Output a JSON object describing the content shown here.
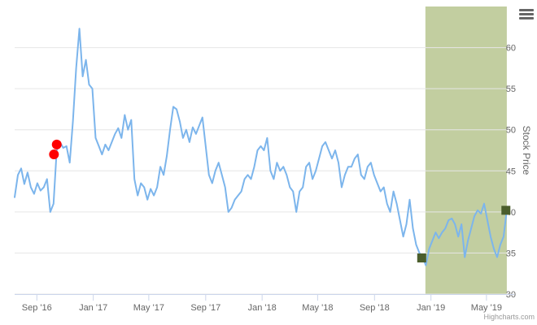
{
  "chart_data": {
    "type": "line",
    "title": "",
    "xlabel": "",
    "ylabel": "Stock Price",
    "x_axis_type": "date",
    "xlim": [
      "2016-07-15",
      "2019-06-30"
    ],
    "ylim": [
      30,
      65
    ],
    "y_ticks": [
      30,
      35,
      40,
      45,
      50,
      55,
      60
    ],
    "x_ticks": [
      {
        "date": "2016-09-01",
        "label": "Sep '16"
      },
      {
        "date": "2017-01-01",
        "label": "Jan '17"
      },
      {
        "date": "2017-05-01",
        "label": "May '17"
      },
      {
        "date": "2017-09-01",
        "label": "Sep '17"
      },
      {
        "date": "2018-01-01",
        "label": "Jan '18"
      },
      {
        "date": "2018-05-01",
        "label": "May '18"
      },
      {
        "date": "2018-09-01",
        "label": "Sep '18"
      },
      {
        "date": "2019-01-01",
        "label": "Jan '19"
      },
      {
        "date": "2019-05-01",
        "label": "May '19"
      }
    ],
    "grid": true,
    "y_axis_position": "right",
    "line_color": "#7cb5ec",
    "highlight_band": {
      "from": "2018-12-20",
      "to": "2019-06-14",
      "color": "#c2cea0"
    },
    "series": [
      {
        "points": [
          [
            "2016-07-15",
            41.8
          ],
          [
            "2016-07-22",
            44.5
          ],
          [
            "2016-07-29",
            45.3
          ],
          [
            "2016-08-05",
            43.4
          ],
          [
            "2016-08-12",
            44.8
          ],
          [
            "2016-08-19",
            43.0
          ],
          [
            "2016-08-26",
            42.2
          ],
          [
            "2016-09-02",
            43.5
          ],
          [
            "2016-09-09",
            42.6
          ],
          [
            "2016-09-16",
            43.0
          ],
          [
            "2016-09-23",
            44.0
          ],
          [
            "2016-09-30",
            40.0
          ],
          [
            "2016-10-07",
            41.0
          ],
          [
            "2016-10-14",
            47.5
          ],
          [
            "2016-10-21",
            48.5
          ],
          [
            "2016-10-28",
            47.8
          ],
          [
            "2016-11-04",
            48.0
          ],
          [
            "2016-11-11",
            46.0
          ],
          [
            "2016-11-18",
            51.0
          ],
          [
            "2016-11-25",
            57.5
          ],
          [
            "2016-12-02",
            62.3
          ],
          [
            "2016-12-09",
            56.5
          ],
          [
            "2016-12-16",
            58.5
          ],
          [
            "2016-12-23",
            55.5
          ],
          [
            "2016-12-30",
            55.0
          ],
          [
            "2017-01-06",
            49.0
          ],
          [
            "2017-01-13",
            48.0
          ],
          [
            "2017-01-20",
            47.0
          ],
          [
            "2017-01-27",
            48.2
          ],
          [
            "2017-02-03",
            47.5
          ],
          [
            "2017-02-10",
            48.5
          ],
          [
            "2017-02-17",
            49.5
          ],
          [
            "2017-02-24",
            50.2
          ],
          [
            "2017-03-03",
            49.0
          ],
          [
            "2017-03-10",
            51.8
          ],
          [
            "2017-03-17",
            50.0
          ],
          [
            "2017-03-24",
            51.2
          ],
          [
            "2017-03-31",
            44.0
          ],
          [
            "2017-04-07",
            42.0
          ],
          [
            "2017-04-14",
            43.5
          ],
          [
            "2017-04-21",
            43.0
          ],
          [
            "2017-04-28",
            41.5
          ],
          [
            "2017-05-05",
            42.8
          ],
          [
            "2017-05-12",
            42.0
          ],
          [
            "2017-05-19",
            43.0
          ],
          [
            "2017-05-26",
            45.5
          ],
          [
            "2017-06-02",
            44.5
          ],
          [
            "2017-06-09",
            46.8
          ],
          [
            "2017-06-16",
            50.0
          ],
          [
            "2017-06-23",
            52.8
          ],
          [
            "2017-06-30",
            52.5
          ],
          [
            "2017-07-07",
            51.0
          ],
          [
            "2017-07-14",
            49.0
          ],
          [
            "2017-07-21",
            50.0
          ],
          [
            "2017-07-28",
            48.5
          ],
          [
            "2017-08-04",
            50.3
          ],
          [
            "2017-08-11",
            49.5
          ],
          [
            "2017-08-18",
            50.5
          ],
          [
            "2017-08-25",
            51.5
          ],
          [
            "2017-09-01",
            48.0
          ],
          [
            "2017-09-08",
            44.5
          ],
          [
            "2017-09-15",
            43.5
          ],
          [
            "2017-09-22",
            45.0
          ],
          [
            "2017-09-29",
            46.0
          ],
          [
            "2017-10-06",
            44.5
          ],
          [
            "2017-10-13",
            43.0
          ],
          [
            "2017-10-20",
            40.0
          ],
          [
            "2017-10-27",
            40.5
          ],
          [
            "2017-11-03",
            41.5
          ],
          [
            "2017-11-10",
            42.0
          ],
          [
            "2017-11-17",
            42.5
          ],
          [
            "2017-11-24",
            44.0
          ],
          [
            "2017-12-01",
            44.5
          ],
          [
            "2017-12-08",
            44.0
          ],
          [
            "2017-12-15",
            45.5
          ],
          [
            "2017-12-22",
            47.5
          ],
          [
            "2017-12-29",
            48.0
          ],
          [
            "2018-01-05",
            47.5
          ],
          [
            "2018-01-12",
            49.0
          ],
          [
            "2018-01-19",
            45.0
          ],
          [
            "2018-01-26",
            44.0
          ],
          [
            "2018-02-02",
            46.0
          ],
          [
            "2018-02-09",
            45.0
          ],
          [
            "2018-02-16",
            45.5
          ],
          [
            "2018-02-23",
            44.5
          ],
          [
            "2018-03-02",
            43.0
          ],
          [
            "2018-03-09",
            42.5
          ],
          [
            "2018-03-16",
            40.0
          ],
          [
            "2018-03-23",
            42.5
          ],
          [
            "2018-03-30",
            43.0
          ],
          [
            "2018-04-06",
            45.5
          ],
          [
            "2018-04-13",
            46.0
          ],
          [
            "2018-04-20",
            44.0
          ],
          [
            "2018-04-27",
            45.0
          ],
          [
            "2018-05-04",
            46.5
          ],
          [
            "2018-05-11",
            48.0
          ],
          [
            "2018-05-18",
            48.5
          ],
          [
            "2018-05-25",
            47.5
          ],
          [
            "2018-06-01",
            46.5
          ],
          [
            "2018-06-08",
            47.5
          ],
          [
            "2018-06-15",
            46.0
          ],
          [
            "2018-06-22",
            43.0
          ],
          [
            "2018-06-29",
            44.5
          ],
          [
            "2018-07-06",
            45.5
          ],
          [
            "2018-07-13",
            45.5
          ],
          [
            "2018-07-20",
            46.5
          ],
          [
            "2018-07-27",
            47.0
          ],
          [
            "2018-08-03",
            44.5
          ],
          [
            "2018-08-10",
            44.0
          ],
          [
            "2018-08-17",
            45.5
          ],
          [
            "2018-08-24",
            46.0
          ],
          [
            "2018-08-31",
            44.5
          ],
          [
            "2018-09-07",
            43.5
          ],
          [
            "2018-09-14",
            42.5
          ],
          [
            "2018-09-21",
            43.0
          ],
          [
            "2018-09-28",
            41.0
          ],
          [
            "2018-10-05",
            40.0
          ],
          [
            "2018-10-12",
            42.5
          ],
          [
            "2018-10-19",
            41.0
          ],
          [
            "2018-10-26",
            39.0
          ],
          [
            "2018-11-02",
            37.0
          ],
          [
            "2018-11-09",
            38.5
          ],
          [
            "2018-11-16",
            41.5
          ],
          [
            "2018-11-23",
            38.0
          ],
          [
            "2018-11-30",
            36.0
          ],
          [
            "2018-12-07",
            35.0
          ],
          [
            "2018-12-14",
            34.5
          ],
          [
            "2018-12-21",
            33.5
          ],
          [
            "2018-12-28",
            35.5
          ],
          [
            "2019-01-04",
            36.5
          ],
          [
            "2019-01-11",
            37.5
          ],
          [
            "2019-01-18",
            36.8
          ],
          [
            "2019-01-25",
            37.5
          ],
          [
            "2019-02-01",
            38.0
          ],
          [
            "2019-02-08",
            39.0
          ],
          [
            "2019-02-15",
            39.2
          ],
          [
            "2019-02-22",
            38.5
          ],
          [
            "2019-03-01",
            37.0
          ],
          [
            "2019-03-08",
            38.5
          ],
          [
            "2019-03-15",
            34.5
          ],
          [
            "2019-03-22",
            36.5
          ],
          [
            "2019-03-29",
            38.0
          ],
          [
            "2019-04-05",
            39.5
          ],
          [
            "2019-04-12",
            40.2
          ],
          [
            "2019-04-19",
            39.8
          ],
          [
            "2019-04-26",
            41.0
          ],
          [
            "2019-05-03",
            39.0
          ],
          [
            "2019-05-10",
            37.0
          ],
          [
            "2019-05-17",
            35.5
          ],
          [
            "2019-05-24",
            34.5
          ],
          [
            "2019-05-31",
            36.0
          ],
          [
            "2019-06-07",
            37.0
          ],
          [
            "2019-06-14",
            40.2
          ]
        ]
      }
    ],
    "markers": [
      {
        "date": "2016-10-08",
        "value": 47.0,
        "shape": "circle",
        "color": "#ff0000"
      },
      {
        "date": "2016-10-14",
        "value": 48.2,
        "shape": "circle",
        "color": "#ff0000"
      },
      {
        "date": "2018-12-12",
        "value": 34.4,
        "shape": "square",
        "color": "#4b5e2c"
      },
      {
        "date": "2019-06-12",
        "value": 40.2,
        "shape": "square",
        "color": "#4b5e2c"
      }
    ]
  },
  "menu": {
    "icon": "hamburger-menu-icon"
  },
  "credits": "Highcharts.com"
}
